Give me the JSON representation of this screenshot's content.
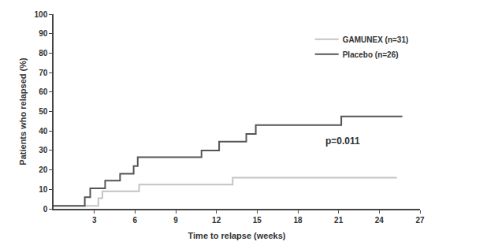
{
  "chart_data": {
    "type": "line",
    "x_label": "Time to relapse (weeks)",
    "y_label": "Patients who relapsed (%)",
    "line_style": "step",
    "series": [
      {
        "name": "GAMUNEX (n=31)",
        "color": "#c4c4c4",
        "x": [
          0,
          3.3,
          3.6,
          6.3,
          13.2,
          25.3
        ],
        "values": [
          1.5,
          5.5,
          9,
          12.5,
          16,
          16
        ]
      },
      {
        "name": "Placebo (n=26)",
        "color": "#555555",
        "x": [
          0,
          2.3,
          2.7,
          3.8,
          4.9,
          5.9,
          6.2,
          10.9,
          12.2,
          14.2,
          14.9,
          21.2,
          25.7
        ],
        "values": [
          1.5,
          6,
          10.5,
          14.5,
          18,
          22,
          26.5,
          30,
          34.5,
          38.5,
          43,
          47.5,
          47.5
        ]
      }
    ],
    "annotations": [
      {
        "text": "p=0.011",
        "x": 21.3,
        "y": 35
      }
    ],
    "xlim": [
      0,
      27
    ],
    "xticks": [
      3,
      6,
      9,
      12,
      15,
      18,
      21,
      24,
      27
    ],
    "ylim": [
      0,
      100
    ],
    "yticks": [
      0,
      10,
      20,
      30,
      40,
      50,
      60,
      70,
      80,
      90,
      100
    ],
    "grid": false,
    "legend": "top right"
  }
}
